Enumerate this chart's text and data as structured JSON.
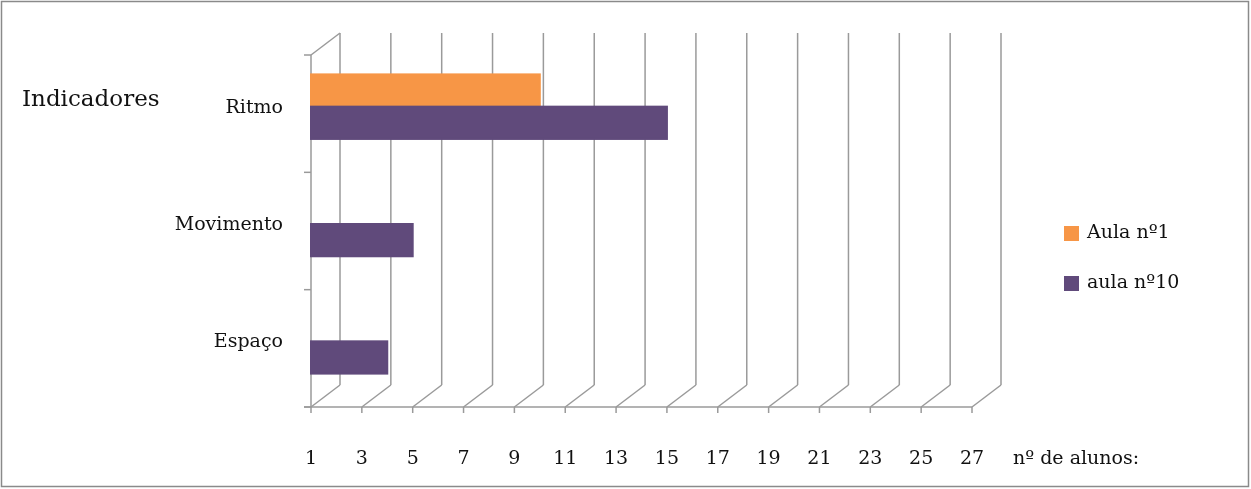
{
  "chart_data": {
    "type": "bar",
    "orientation": "horizontal",
    "ylabel": "Indicadores",
    "xlabel": "nº de alunos:",
    "categories": [
      "Ritmo",
      "Movimento",
      "Espaço"
    ],
    "series": [
      {
        "name": "Aula nº1",
        "color": "#f79646",
        "values": [
          10,
          1,
          1
        ]
      },
      {
        "name": "aula nº10",
        "color": "#604a7b",
        "values": [
          15,
          5,
          4
        ]
      }
    ],
    "xlim": [
      1,
      27
    ],
    "xticks": [
      1,
      3,
      5,
      7,
      9,
      11,
      13,
      15,
      17,
      19,
      21,
      23,
      25,
      27
    ],
    "grid": "x",
    "legend": "right"
  }
}
